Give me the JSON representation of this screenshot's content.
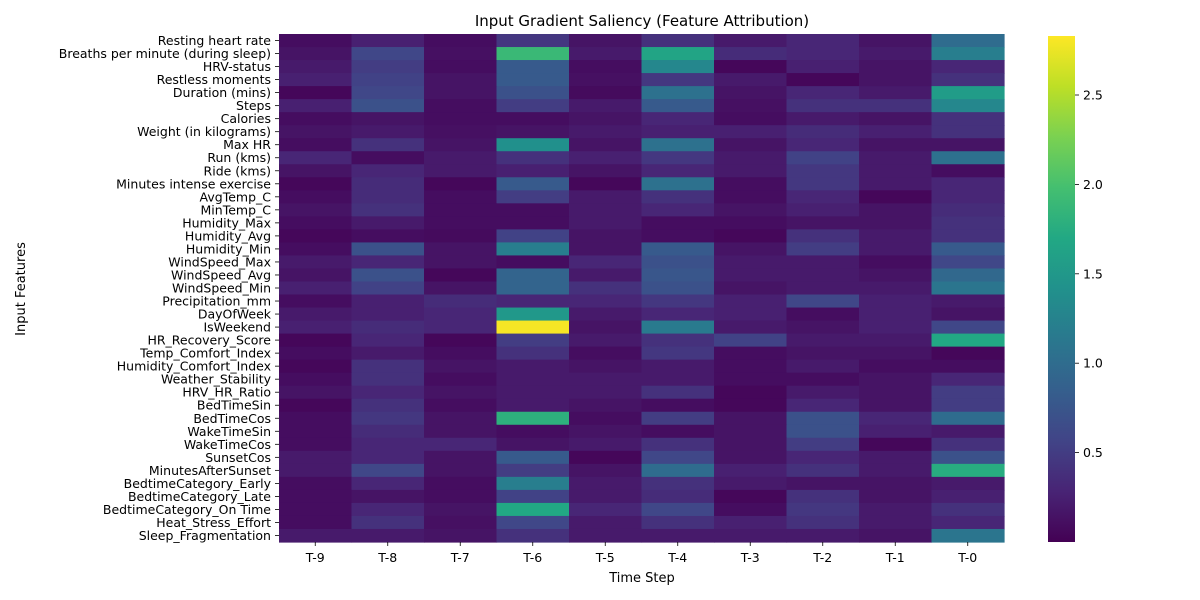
{
  "chart_data": {
    "type": "heatmap",
    "title": "Input Gradient Saliency (Feature Attribution)",
    "xlabel": "Time Step",
    "ylabel": "Input Features",
    "x": [
      "T-9",
      "T-8",
      "T-7",
      "T-6",
      "T-5",
      "T-4",
      "T-3",
      "T-2",
      "T-1",
      "T-0"
    ],
    "y": [
      "Resting heart rate",
      "Breaths per minute (during sleep)",
      "HRV-status",
      "Restless moments",
      "Duration (mins)",
      "Steps",
      "Calories",
      "Weight (in kilograms)",
      "Max HR",
      "Run (kms)",
      "Ride (kms)",
      "Minutes intense exercise",
      "AvgTemp_C",
      "MinTemp_C",
      "Humidity_Max",
      "Humidity_Avg",
      "Humidity_Min",
      "WindSpeed_Max",
      "WindSpeed_Avg",
      "WindSpeed_Min",
      "Precipitation_mm",
      "DayOfWeek",
      "IsWeekend",
      "HR_Recovery_Score",
      "Temp_Comfort_Index",
      "Humidity_Comfort_Index",
      "Weather_Stability",
      "HRV_HR_Ratio",
      "BedTimeSin",
      "BedTimeCos",
      "WakeTimeSin",
      "WakeTimeCos",
      "SunsetCos",
      "MinutesAfterSunset",
      "BedtimeCategory_Early",
      "BedtimeCategory_Late",
      "BedtimeCategory_On Time",
      "Heat_Stress_Effort",
      "Sleep_Fragmentation"
    ],
    "values": [
      [
        0.1,
        0.25,
        0.1,
        0.45,
        0.15,
        0.4,
        0.2,
        0.3,
        0.15,
        1.0
      ],
      [
        0.15,
        0.6,
        0.12,
        1.9,
        0.2,
        1.65,
        0.35,
        0.3,
        0.2,
        1.2
      ],
      [
        0.2,
        0.5,
        0.1,
        0.8,
        0.1,
        1.3,
        0.05,
        0.25,
        0.15,
        0.3
      ],
      [
        0.25,
        0.55,
        0.15,
        0.8,
        0.12,
        0.45,
        0.2,
        0.05,
        0.15,
        0.4
      ],
      [
        0.05,
        0.6,
        0.15,
        0.7,
        0.08,
        1.05,
        0.15,
        0.3,
        0.2,
        1.55
      ],
      [
        0.25,
        0.7,
        0.1,
        0.5,
        0.2,
        0.8,
        0.12,
        0.4,
        0.4,
        1.3
      ],
      [
        0.1,
        0.15,
        0.1,
        0.1,
        0.15,
        0.3,
        0.1,
        0.2,
        0.15,
        0.4
      ],
      [
        0.15,
        0.2,
        0.12,
        0.15,
        0.2,
        0.25,
        0.25,
        0.35,
        0.25,
        0.4
      ],
      [
        0.1,
        0.4,
        0.15,
        1.4,
        0.15,
        1.05,
        0.15,
        0.3,
        0.15,
        0.15
      ],
      [
        0.3,
        0.1,
        0.2,
        0.4,
        0.25,
        0.45,
        0.2,
        0.55,
        0.2,
        1.05
      ],
      [
        0.15,
        0.3,
        0.2,
        0.25,
        0.15,
        0.3,
        0.2,
        0.45,
        0.2,
        0.1
      ],
      [
        0.05,
        0.35,
        0.05,
        0.8,
        0.05,
        1.05,
        0.1,
        0.45,
        0.2,
        0.3
      ],
      [
        0.1,
        0.35,
        0.1,
        0.5,
        0.2,
        0.4,
        0.1,
        0.3,
        0.05,
        0.3
      ],
      [
        0.15,
        0.4,
        0.1,
        0.1,
        0.2,
        0.3,
        0.15,
        0.25,
        0.15,
        0.35
      ],
      [
        0.1,
        0.2,
        0.1,
        0.1,
        0.2,
        0.1,
        0.1,
        0.15,
        0.15,
        0.4
      ],
      [
        0.05,
        0.1,
        0.08,
        0.55,
        0.15,
        0.1,
        0.05,
        0.4,
        0.2,
        0.4
      ],
      [
        0.1,
        0.7,
        0.15,
        1.2,
        0.15,
        0.8,
        0.15,
        0.5,
        0.2,
        0.8
      ],
      [
        0.2,
        0.3,
        0.15,
        0.1,
        0.3,
        0.7,
        0.2,
        0.2,
        0.1,
        0.6
      ],
      [
        0.15,
        0.7,
        0.05,
        0.9,
        0.2,
        0.75,
        0.2,
        0.2,
        0.15,
        0.95
      ],
      [
        0.25,
        0.55,
        0.15,
        0.9,
        0.4,
        0.7,
        0.15,
        0.2,
        0.2,
        1.1
      ],
      [
        0.1,
        0.25,
        0.35,
        0.3,
        0.3,
        0.45,
        0.25,
        0.6,
        0.25,
        0.2
      ],
      [
        0.2,
        0.25,
        0.3,
        1.5,
        0.2,
        0.3,
        0.25,
        0.1,
        0.25,
        0.15
      ],
      [
        0.25,
        0.35,
        0.3,
        2.8,
        0.15,
        1.15,
        0.2,
        0.15,
        0.25,
        0.6
      ],
      [
        0.05,
        0.3,
        0.05,
        0.5,
        0.2,
        0.4,
        0.55,
        0.2,
        0.2,
        1.7
      ],
      [
        0.1,
        0.2,
        0.1,
        0.4,
        0.1,
        0.45,
        0.1,
        0.15,
        0.15,
        0.05
      ],
      [
        0.05,
        0.4,
        0.15,
        0.2,
        0.15,
        0.2,
        0.1,
        0.2,
        0.1,
        0.1
      ],
      [
        0.1,
        0.4,
        0.1,
        0.2,
        0.2,
        0.2,
        0.1,
        0.1,
        0.15,
        0.3
      ],
      [
        0.15,
        0.3,
        0.15,
        0.2,
        0.2,
        0.4,
        0.05,
        0.2,
        0.15,
        0.5
      ],
      [
        0.05,
        0.4,
        0.1,
        0.2,
        0.15,
        0.1,
        0.05,
        0.3,
        0.15,
        0.5
      ],
      [
        0.1,
        0.45,
        0.15,
        1.8,
        0.1,
        0.5,
        0.15,
        0.7,
        0.3,
        1.0
      ],
      [
        0.1,
        0.35,
        0.15,
        0.1,
        0.15,
        0.1,
        0.15,
        0.7,
        0.25,
        0.2
      ],
      [
        0.1,
        0.3,
        0.3,
        0.15,
        0.2,
        0.4,
        0.15,
        0.5,
        0.05,
        0.4
      ],
      [
        0.2,
        0.3,
        0.15,
        0.8,
        0.05,
        0.6,
        0.15,
        0.3,
        0.2,
        0.7
      ],
      [
        0.2,
        0.6,
        0.15,
        0.5,
        0.15,
        1.0,
        0.25,
        0.4,
        0.2,
        1.75
      ],
      [
        0.1,
        0.3,
        0.1,
        1.2,
        0.2,
        0.4,
        0.2,
        0.15,
        0.15,
        0.2
      ],
      [
        0.1,
        0.15,
        0.1,
        0.55,
        0.2,
        0.35,
        0.05,
        0.4,
        0.15,
        0.25
      ],
      [
        0.1,
        0.3,
        0.15,
        1.7,
        0.3,
        0.6,
        0.1,
        0.45,
        0.2,
        0.4
      ],
      [
        0.1,
        0.4,
        0.12,
        0.6,
        0.2,
        0.4,
        0.25,
        0.4,
        0.2,
        0.3
      ],
      [
        0.2,
        0.2,
        0.15,
        0.4,
        0.2,
        0.2,
        0.2,
        0.2,
        0.15,
        1.1
      ]
    ],
    "colorbar": {
      "colormap": "viridis",
      "vmin": 0.0,
      "vmax": 2.83,
      "ticks": [
        0.5,
        1.0,
        1.5,
        2.0,
        2.5
      ],
      "tick_labels": [
        "0.5",
        "1.0",
        "1.5",
        "2.0",
        "2.5"
      ]
    },
    "grid": false,
    "legend": "colorbar-right"
  }
}
